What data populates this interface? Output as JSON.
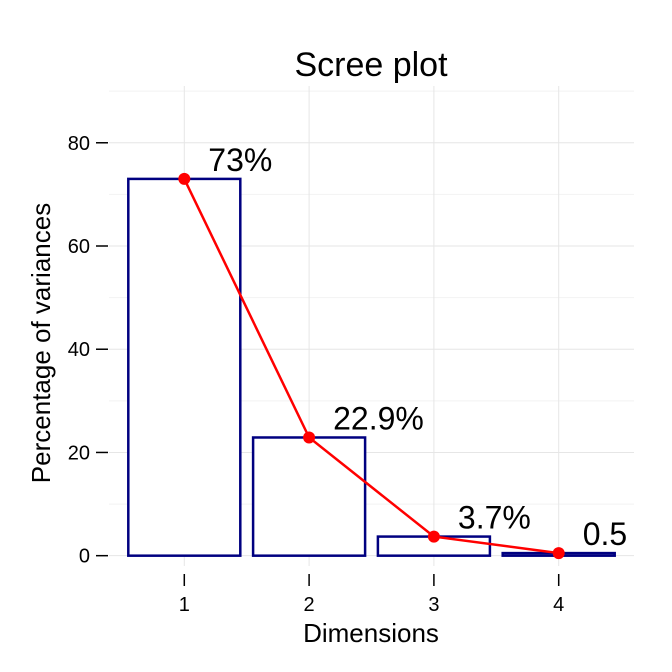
{
  "chart_data": {
    "type": "bar",
    "title": "Scree plot",
    "xlabel": "Dimensions",
    "ylabel": "Percentage of variances",
    "categories": [
      "1",
      "2",
      "3",
      "4"
    ],
    "values": [
      73,
      22.9,
      3.7,
      0.5
    ],
    "data_labels": [
      "73%",
      "22.9%",
      "3.7%",
      "0.5"
    ],
    "ylim": [
      -2,
      91
    ],
    "y_ticks": [
      0,
      20,
      40,
      60,
      80
    ],
    "y_tick_labels": [
      "0",
      "20",
      "40",
      "60",
      "80"
    ],
    "grid": true,
    "legend": "none",
    "overlay": {
      "type": "line",
      "values": [
        73,
        22.9,
        3.7,
        0.5
      ],
      "markers": true
    },
    "colors": {
      "bar_outline": "#000080",
      "bar_fill": "#ffffff",
      "line": "#ff0000",
      "point": "#ff0000",
      "grid": "#e6e6e6"
    }
  }
}
